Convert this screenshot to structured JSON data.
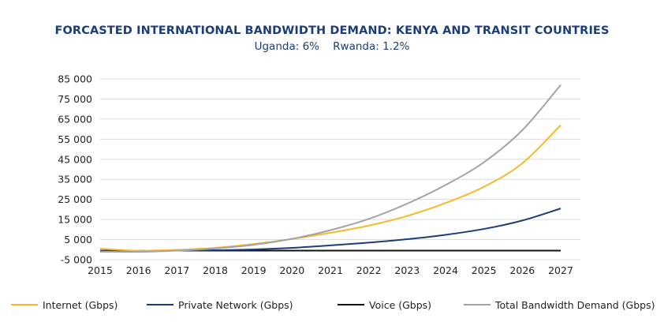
{
  "chart_data": {
    "type": "line",
    "title": "FORCASTED INTERNATIONAL BANDWIDTH DEMAND: KENYA AND TRANSIT COUNTRIES",
    "subtitle": "Uganda: 6%    Rwanda: 1.2%",
    "x": [
      "2015",
      "2016",
      "2017",
      "2018",
      "2019",
      "2020",
      "2021",
      "2022",
      "2023",
      "2024",
      "2025",
      "2026",
      "2027"
    ],
    "y_ticks": [
      "-5 000",
      "5 000",
      "15 000",
      "25 000",
      "35 000",
      "45 000",
      "55 000",
      "65 000",
      "75 000",
      "85 000"
    ],
    "ylim": [
      -5000,
      85000
    ],
    "grid": "horizontal",
    "legend_position": "bottom",
    "series": [
      {
        "name": "Internet (Gbps)",
        "color": "#f7b92a",
        "values": [
          500,
          -500,
          -100,
          900,
          2800,
          5300,
          8400,
          12000,
          16800,
          23200,
          31300,
          43000,
          62000
        ]
      },
      {
        "name": "Private Network (Gbps)",
        "color": "#1b3d78",
        "values": [
          -500,
          -600,
          -500,
          -300,
          100,
          900,
          2100,
          3500,
          5200,
          7400,
          10300,
          14500,
          20500
        ]
      },
      {
        "name": "Voice (Gbps)",
        "color": "#111111",
        "values": [
          -500,
          -500,
          -500,
          -500,
          -500,
          -500,
          -500,
          -500,
          -500,
          -500,
          -500,
          -500,
          -500
        ]
      },
      {
        "name": "Total Bandwidth Demand (Gbps)",
        "color": "#a3a3a3",
        "values": [
          -1000,
          -1100,
          -500,
          600,
          2400,
          5400,
          9700,
          15300,
          22900,
          32200,
          43500,
          59500,
          82000
        ]
      }
    ]
  }
}
